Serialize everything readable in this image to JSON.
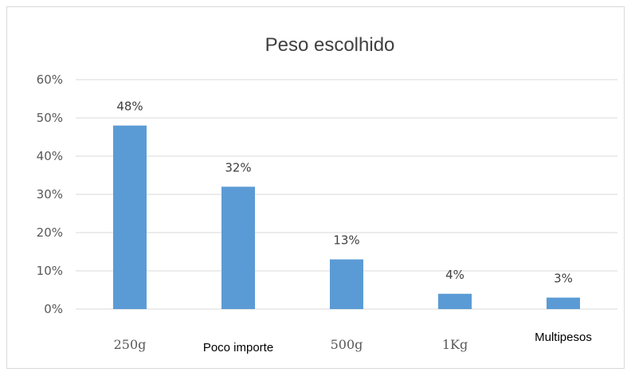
{
  "chart_data": {
    "type": "bar",
    "title": "Peso escolhido",
    "categories": [
      "250g",
      "Poco importe",
      "500g",
      "1Kg",
      "Multipesos"
    ],
    "values": [
      48,
      32,
      13,
      4,
      3
    ],
    "data_labels": [
      "48%",
      "32%",
      "13%",
      "4%",
      "3%"
    ],
    "value_unit": "%",
    "ylim": [
      0,
      60
    ],
    "yticks": [
      0,
      10,
      20,
      30,
      40,
      50,
      60
    ],
    "ytick_labels": [
      "0%",
      "10%",
      "20%",
      "30%",
      "40%",
      "50%",
      "60%"
    ],
    "xlabel": "",
    "ylabel": "",
    "grid": true,
    "legend": "none",
    "bar_color": "#5b9bd5",
    "grid_color": "#d9d9d9"
  }
}
